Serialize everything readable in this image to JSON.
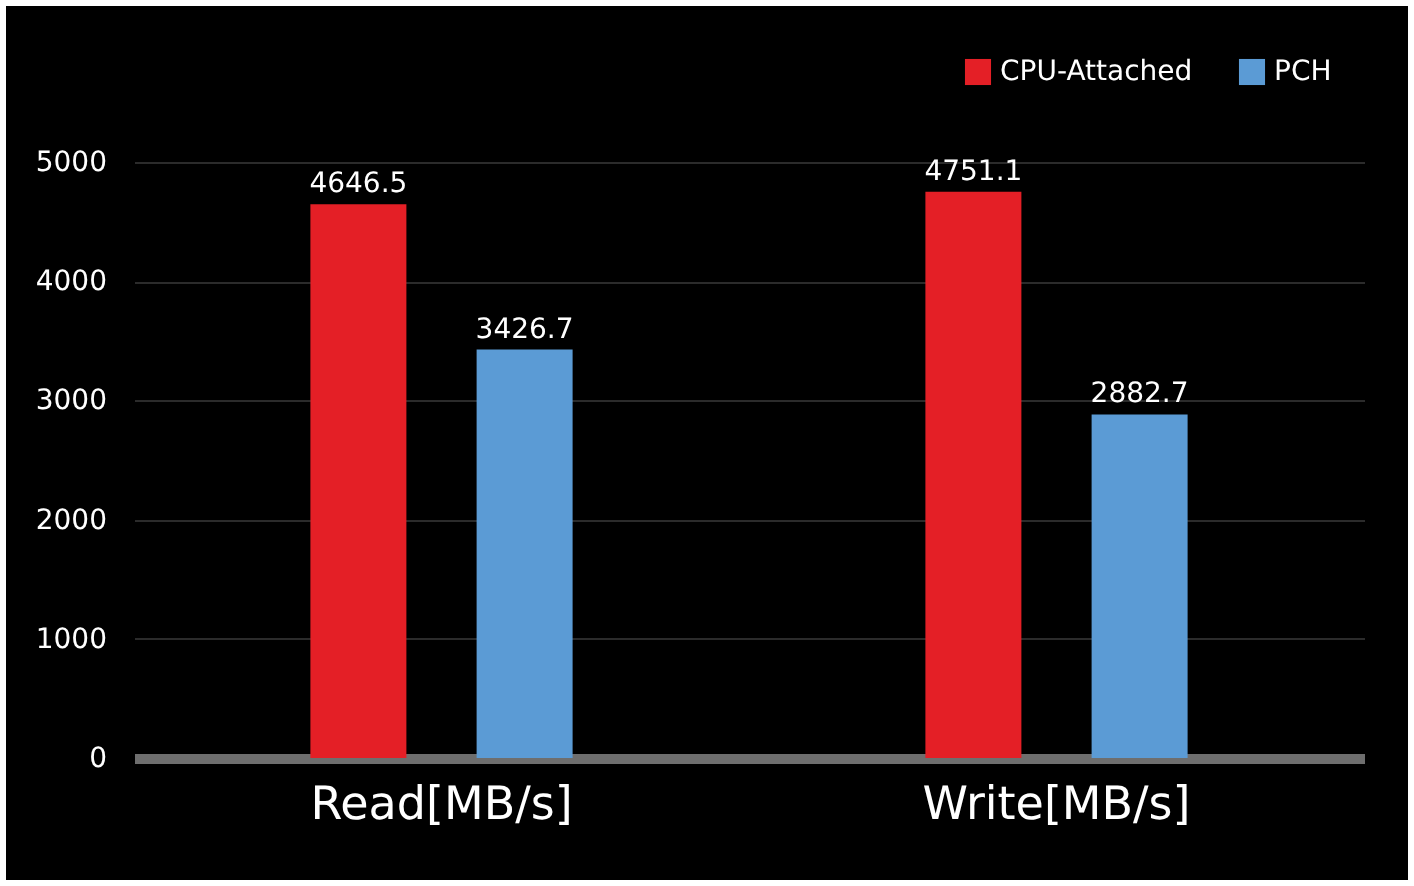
{
  "chart_data": {
    "type": "bar",
    "categories": [
      "Read[MB/s]",
      "Write[MB/s]"
    ],
    "series": [
      {
        "name": "CPU-Attached",
        "color": "#e41f26",
        "values": [
          4646.5,
          4751.1
        ]
      },
      {
        "name": "PCH",
        "color": "#5b9bd5",
        "values": [
          3426.7,
          2882.7
        ]
      }
    ],
    "ylim": [
      0,
      5000
    ],
    "yticks": [
      0,
      1000,
      2000,
      3000,
      4000,
      5000
    ],
    "grid": "y",
    "legend": "top right",
    "data_labels": true
  }
}
